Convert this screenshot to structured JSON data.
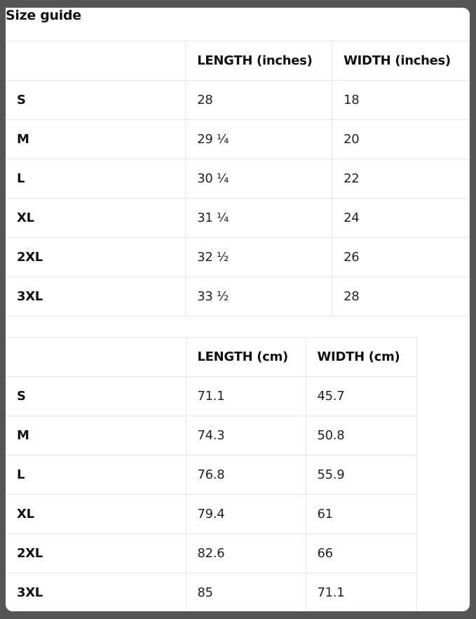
{
  "title": "Size guide",
  "inches": {
    "headers": [
      "",
      "LENGTH (inches)",
      "WIDTH (inches)"
    ],
    "rows": [
      [
        "S",
        "28",
        "18"
      ],
      [
        "M",
        "29 ¼",
        "20"
      ],
      [
        "L",
        "30 ¼",
        "22"
      ],
      [
        "XL",
        "31 ¼",
        "24"
      ],
      [
        "2XL",
        "32 ½",
        "26"
      ],
      [
        "3XL",
        "33 ½",
        "28"
      ]
    ]
  },
  "cm": {
    "headers": [
      "",
      "LENGTH (cm)",
      "WIDTH (cm)"
    ],
    "rows": [
      [
        "S",
        "71.1",
        "45.7"
      ],
      [
        "M",
        "74.3",
        "50.8"
      ],
      [
        "L",
        "76.8",
        "55.9"
      ],
      [
        "XL",
        "79.4",
        "61"
      ],
      [
        "2XL",
        "82.6",
        "66"
      ],
      [
        "3XL",
        "85",
        "71.1"
      ]
    ]
  }
}
